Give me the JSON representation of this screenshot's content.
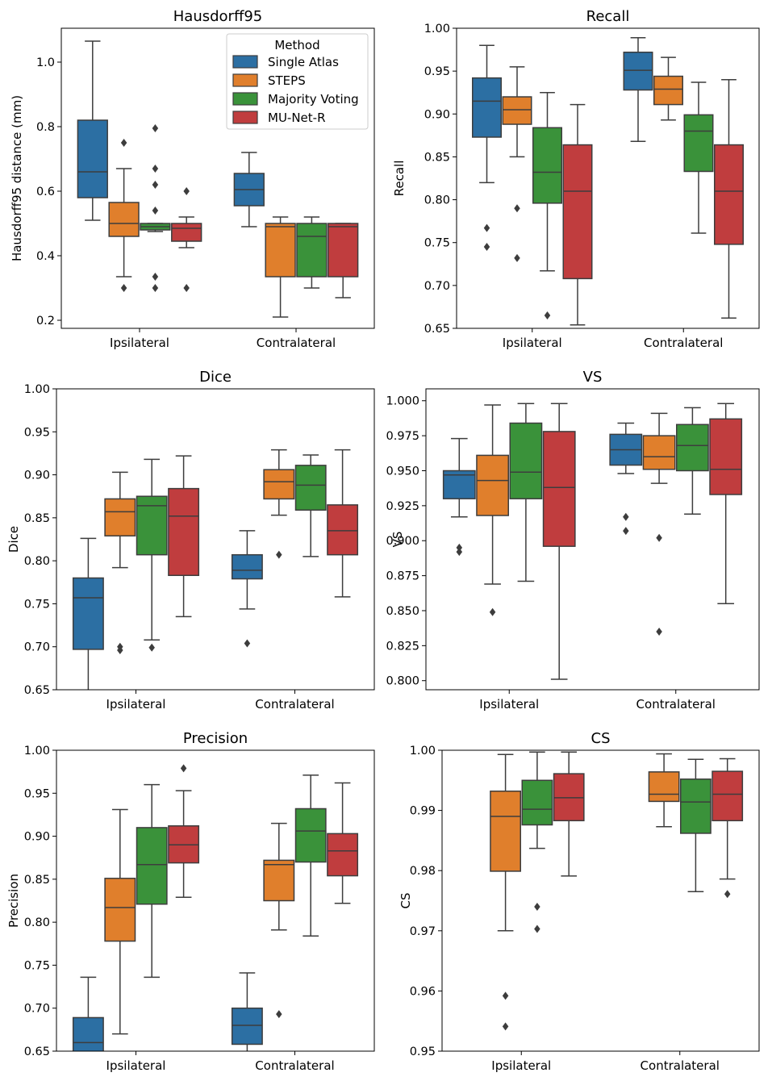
{
  "colors": {
    "Single Atlas": "#2c6fa3",
    "STEPS": "#e07f2c",
    "Majority Voting": "#3a923a",
    "MU-Net-R": "#c03d3e"
  },
  "legend": {
    "title": "Method",
    "entries": [
      "Single Atlas",
      "STEPS",
      "Majority Voting",
      "MU-Net-R"
    ]
  },
  "chart_data": [
    {
      "type": "box",
      "title": "Hausdorff95",
      "ylabel": "Hausdorff95 distance (mm)",
      "categories": [
        "Ipsilateral",
        "Contralateral"
      ],
      "ylim": [
        0.175,
        1.105
      ],
      "yticks": [
        0.2,
        0.4,
        0.6,
        0.8,
        1.0
      ],
      "ytick_labels": [
        "0.2",
        "0.4",
        "0.6",
        "0.8",
        "1.0"
      ],
      "show_legend": true,
      "series": [
        {
          "name": "Single Atlas",
          "boxes": [
            {
              "low": 0.51,
              "q1": 0.58,
              "median": 0.66,
              "q3": 0.82,
              "high": 1.065,
              "outliers": []
            },
            {
              "low": 0.49,
              "q1": 0.555,
              "median": 0.605,
              "q3": 0.655,
              "high": 0.72,
              "outliers": []
            }
          ]
        },
        {
          "name": "STEPS",
          "boxes": [
            {
              "low": 0.335,
              "q1": 0.46,
              "median": 0.5,
              "q3": 0.565,
              "high": 0.67,
              "outliers": [
                0.75,
                0.3
              ]
            },
            {
              "low": 0.21,
              "q1": 0.335,
              "median": 0.49,
              "q3": 0.5,
              "high": 0.52,
              "outliers": []
            }
          ]
        },
        {
          "name": "Majority Voting",
          "boxes": [
            {
              "low": 0.475,
              "q1": 0.48,
              "median": 0.49,
              "q3": 0.5,
              "high": 0.5,
              "outliers": [
                0.795,
                0.67,
                0.62,
                0.54,
                0.335,
                0.3
              ]
            },
            {
              "low": 0.3,
              "q1": 0.335,
              "median": 0.46,
              "q3": 0.5,
              "high": 0.52,
              "outliers": []
            }
          ]
        },
        {
          "name": "MU-Net-R",
          "boxes": [
            {
              "low": 0.425,
              "q1": 0.445,
              "median": 0.485,
              "q3": 0.5,
              "high": 0.52,
              "outliers": [
                0.6,
                0.3
              ]
            },
            {
              "low": 0.27,
              "q1": 0.335,
              "median": 0.49,
              "q3": 0.5,
              "high": 0.5,
              "outliers": []
            }
          ]
        }
      ]
    },
    {
      "type": "box",
      "title": "Recall",
      "ylabel": "Recall",
      "categories": [
        "Ipsilateral",
        "Contralateral"
      ],
      "ylim": [
        0.65,
        1.0
      ],
      "yticks": [
        0.65,
        0.7,
        0.75,
        0.8,
        0.85,
        0.9,
        0.95,
        1.0
      ],
      "ytick_labels": [
        "0.65",
        "0.70",
        "0.75",
        "0.80",
        "0.85",
        "0.90",
        "0.95",
        "1.00"
      ],
      "show_legend": false,
      "series": [
        {
          "name": "Single Atlas",
          "boxes": [
            {
              "low": 0.82,
              "q1": 0.873,
              "median": 0.915,
              "q3": 0.942,
              "high": 0.98,
              "outliers": [
                0.767,
                0.745
              ]
            },
            {
              "low": 0.868,
              "q1": 0.928,
              "median": 0.951,
              "q3": 0.972,
              "high": 0.989,
              "outliers": []
            }
          ]
        },
        {
          "name": "STEPS",
          "boxes": [
            {
              "low": 0.85,
              "q1": 0.888,
              "median": 0.905,
              "q3": 0.92,
              "high": 0.955,
              "outliers": [
                0.79,
                0.732
              ]
            },
            {
              "low": 0.893,
              "q1": 0.911,
              "median": 0.929,
              "q3": 0.944,
              "high": 0.966,
              "outliers": []
            }
          ]
        },
        {
          "name": "Majority Voting",
          "boxes": [
            {
              "low": 0.717,
              "q1": 0.796,
              "median": 0.832,
              "q3": 0.884,
              "high": 0.925,
              "outliers": [
                0.665
              ]
            },
            {
              "low": 0.761,
              "q1": 0.833,
              "median": 0.88,
              "q3": 0.899,
              "high": 0.937,
              "outliers": []
            }
          ]
        },
        {
          "name": "MU-Net-R",
          "boxes": [
            {
              "low": 0.654,
              "q1": 0.708,
              "median": 0.81,
              "q3": 0.864,
              "high": 0.911,
              "outliers": []
            },
            {
              "low": 0.662,
              "q1": 0.748,
              "median": 0.81,
              "q3": 0.864,
              "high": 0.94,
              "outliers": []
            }
          ]
        }
      ]
    },
    {
      "type": "box",
      "title": "Dice",
      "ylabel": "Dice",
      "categories": [
        "Ipsilateral",
        "Contralateral"
      ],
      "ylim": [
        0.65,
        1.0
      ],
      "yticks": [
        0.65,
        0.7,
        0.75,
        0.8,
        0.85,
        0.9,
        0.95,
        1.0
      ],
      "ytick_labels": [
        "0.65",
        "0.70",
        "0.75",
        "0.80",
        "0.85",
        "0.90",
        "0.95",
        "1.00"
      ],
      "show_legend": false,
      "series": [
        {
          "name": "Single Atlas",
          "boxes": [
            {
              "low": 0.648,
              "q1": 0.697,
              "median": 0.757,
              "q3": 0.78,
              "high": 0.826,
              "outliers": []
            },
            {
              "low": 0.744,
              "q1": 0.779,
              "median": 0.789,
              "q3": 0.807,
              "high": 0.835,
              "outliers": [
                0.704
              ]
            }
          ]
        },
        {
          "name": "STEPS",
          "boxes": [
            {
              "low": 0.792,
              "q1": 0.829,
              "median": 0.857,
              "q3": 0.872,
              "high": 0.903,
              "outliers": [
                0.7,
                0.696
              ]
            },
            {
              "low": 0.853,
              "q1": 0.872,
              "median": 0.892,
              "q3": 0.906,
              "high": 0.929,
              "outliers": [
                0.807
              ]
            }
          ]
        },
        {
          "name": "Majority Voting",
          "boxes": [
            {
              "low": 0.708,
              "q1": 0.807,
              "median": 0.864,
              "q3": 0.875,
              "high": 0.918,
              "outliers": [
                0.699
              ]
            },
            {
              "low": 0.805,
              "q1": 0.859,
              "median": 0.888,
              "q3": 0.911,
              "high": 0.923,
              "outliers": []
            }
          ]
        },
        {
          "name": "MU-Net-R",
          "boxes": [
            {
              "low": 0.735,
              "q1": 0.783,
              "median": 0.852,
              "q3": 0.884,
              "high": 0.922,
              "outliers": []
            },
            {
              "low": 0.758,
              "q1": 0.807,
              "median": 0.835,
              "q3": 0.865,
              "high": 0.929,
              "outliers": []
            }
          ]
        }
      ]
    },
    {
      "type": "box",
      "title": "VS",
      "ylabel": "VS",
      "categories": [
        "Ipsilateral",
        "Contralateral"
      ],
      "ylim": [
        0.7935,
        1.0085
      ],
      "yticks": [
        0.8,
        0.825,
        0.85,
        0.875,
        0.9,
        0.925,
        0.95,
        0.975,
        1.0
      ],
      "ytick_labels": [
        "0.800",
        "0.825",
        "0.850",
        "0.875",
        "0.900",
        "0.925",
        "0.950",
        "0.975",
        "1.000"
      ],
      "show_legend": false,
      "series": [
        {
          "name": "Single Atlas",
          "boxes": [
            {
              "low": 0.917,
              "q1": 0.93,
              "median": 0.947,
              "q3": 0.95,
              "high": 0.973,
              "outliers": [
                0.895,
                0.892
              ]
            },
            {
              "low": 0.948,
              "q1": 0.954,
              "median": 0.965,
              "q3": 0.976,
              "high": 0.984,
              "outliers": [
                0.917,
                0.907
              ]
            }
          ]
        },
        {
          "name": "STEPS",
          "boxes": [
            {
              "low": 0.869,
              "q1": 0.918,
              "median": 0.943,
              "q3": 0.961,
              "high": 0.997,
              "outliers": [
                0.849
              ]
            },
            {
              "low": 0.941,
              "q1": 0.951,
              "median": 0.96,
              "q3": 0.975,
              "high": 0.991,
              "outliers": [
                0.902,
                0.835
              ]
            }
          ]
        },
        {
          "name": "Majority Voting",
          "boxes": [
            {
              "low": 0.871,
              "q1": 0.93,
              "median": 0.949,
              "q3": 0.984,
              "high": 0.998,
              "outliers": []
            },
            {
              "low": 0.919,
              "q1": 0.95,
              "median": 0.968,
              "q3": 0.983,
              "high": 0.995,
              "outliers": []
            }
          ]
        },
        {
          "name": "MU-Net-R",
          "boxes": [
            {
              "low": 0.801,
              "q1": 0.896,
              "median": 0.938,
              "q3": 0.978,
              "high": 0.998,
              "outliers": []
            },
            {
              "low": 0.855,
              "q1": 0.933,
              "median": 0.951,
              "q3": 0.987,
              "high": 0.998,
              "outliers": []
            }
          ]
        }
      ]
    },
    {
      "type": "box",
      "title": "Precision",
      "ylabel": "Precision",
      "categories": [
        "Ipsilateral",
        "Contralateral"
      ],
      "ylim": [
        0.65,
        1.0
      ],
      "yticks": [
        0.65,
        0.7,
        0.75,
        0.8,
        0.85,
        0.9,
        0.95,
        1.0
      ],
      "ytick_labels": [
        "0.65",
        "0.70",
        "0.75",
        "0.80",
        "0.85",
        "0.90",
        "0.95",
        "1.00"
      ],
      "show_legend": false,
      "series": [
        {
          "name": "Single Atlas",
          "boxes": [
            {
              "low": 0.64,
              "q1": 0.64,
              "median": 0.66,
              "q3": 0.689,
              "high": 0.736,
              "outliers": []
            },
            {
              "low": 0.642,
              "q1": 0.658,
              "median": 0.68,
              "q3": 0.7,
              "high": 0.741,
              "outliers": []
            }
          ]
        },
        {
          "name": "STEPS",
          "boxes": [
            {
              "low": 0.67,
              "q1": 0.778,
              "median": 0.817,
              "q3": 0.851,
              "high": 0.931,
              "outliers": []
            },
            {
              "low": 0.791,
              "q1": 0.825,
              "median": 0.867,
              "q3": 0.872,
              "high": 0.915,
              "outliers": [
                0.693
              ]
            }
          ]
        },
        {
          "name": "Majority Voting",
          "boxes": [
            {
              "low": 0.736,
              "q1": 0.821,
              "median": 0.867,
              "q3": 0.91,
              "high": 0.96,
              "outliers": []
            },
            {
              "low": 0.784,
              "q1": 0.87,
              "median": 0.906,
              "q3": 0.932,
              "high": 0.971,
              "outliers": []
            }
          ]
        },
        {
          "name": "MU-Net-R",
          "boxes": [
            {
              "low": 0.829,
              "q1": 0.869,
              "median": 0.89,
              "q3": 0.912,
              "high": 0.953,
              "outliers": [
                0.979
              ]
            },
            {
              "low": 0.822,
              "q1": 0.854,
              "median": 0.883,
              "q3": 0.903,
              "high": 0.962,
              "outliers": []
            }
          ]
        }
      ]
    },
    {
      "type": "box",
      "title": "CS",
      "ylabel": "CS",
      "categories": [
        "Ipsilateral",
        "Contralateral"
      ],
      "ylim": [
        0.95,
        1.0
      ],
      "yticks": [
        0.95,
        0.96,
        0.97,
        0.98,
        0.99,
        1.0
      ],
      "ytick_labels": [
        "0.95",
        "0.96",
        "0.97",
        "0.98",
        "0.99",
        "1.00"
      ],
      "show_legend": false,
      "series": [
        {
          "name": "Single Atlas",
          "boxes": [
            null,
            null
          ]
        },
        {
          "name": "STEPS",
          "boxes": [
            {
              "low": 0.97,
              "q1": 0.9799,
              "median": 0.989,
              "q3": 0.9932,
              "high": 0.9993,
              "outliers": [
                0.9592,
                0.9541
              ]
            },
            {
              "low": 0.9873,
              "q1": 0.9915,
              "median": 0.9927,
              "q3": 0.9964,
              "high": 0.9994,
              "outliers": []
            }
          ]
        },
        {
          "name": "Majority Voting",
          "boxes": [
            {
              "low": 0.9837,
              "q1": 0.9876,
              "median": 0.9902,
              "q3": 0.995,
              "high": 0.9997,
              "outliers": [
                0.974,
                0.9703
              ]
            },
            {
              "low": 0.9765,
              "q1": 0.9862,
              "median": 0.9914,
              "q3": 0.9952,
              "high": 0.9985,
              "outliers": []
            }
          ]
        },
        {
          "name": "MU-Net-R",
          "boxes": [
            {
              "low": 0.9791,
              "q1": 0.9883,
              "median": 0.9921,
              "q3": 0.9961,
              "high": 0.9997,
              "outliers": []
            },
            {
              "low": 0.9786,
              "q1": 0.9883,
              "median": 0.9927,
              "q3": 0.9965,
              "high": 0.9986,
              "outliers": [
                0.9761
              ]
            }
          ]
        }
      ]
    }
  ]
}
